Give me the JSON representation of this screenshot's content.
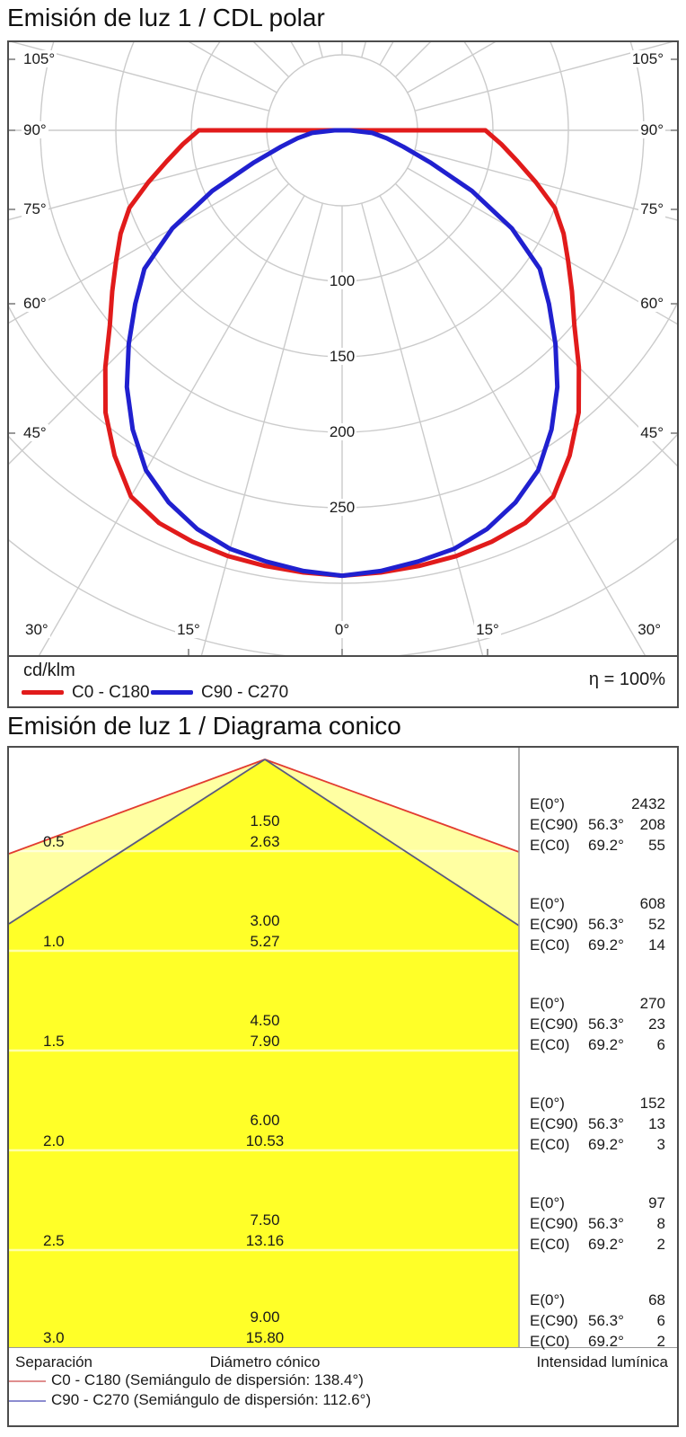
{
  "chart_data": [
    {
      "type": "polar",
      "title": "Emisión de luz 1 / CDL polar",
      "unit": "cd/klm",
      "efficiency": "η = 100%",
      "angle_step_deg": 5,
      "radial_ticks": [
        100,
        150,
        200,
        250
      ],
      "radial_grid": [
        50,
        100,
        150,
        200,
        250,
        300,
        350
      ],
      "angle_labels": {
        "left": [
          "105°",
          "90°",
          "75°",
          "60°",
          "45°",
          "30°"
        ],
        "bottom": [
          "15°",
          "0°",
          "15°"
        ],
        "right": [
          "105°",
          "90°",
          "75°",
          "60°",
          "45°",
          "30°"
        ]
      },
      "series": [
        {
          "name": "C0 - C180",
          "color": "#e11b1b",
          "angles_deg_0_to_90": [
            0,
            5,
            10,
            15,
            20,
            25,
            30,
            35,
            40,
            45,
            50,
            55,
            60,
            65,
            70,
            75,
            80,
            85,
            90
          ],
          "values_cd_per_klm": [
            295,
            294,
            293,
            292,
            290,
            287,
            280,
            263,
            244,
            222,
            201,
            186,
            173,
            162,
            150,
            133,
            118,
            106,
            95
          ]
        },
        {
          "name": "C90 - C270",
          "color": "#2020cf",
          "angles_deg_0_to_90": [
            0,
            5,
            10,
            15,
            20,
            25,
            30,
            35,
            40,
            45,
            50,
            55,
            60,
            65,
            70,
            75,
            80,
            85,
            90
          ],
          "values_cd_per_klm": [
            295,
            293,
            290,
            287,
            281,
            272,
            260,
            242,
            222,
            200,
            179,
            160,
            130,
            95,
            62,
            42,
            30,
            20,
            5
          ]
        }
      ]
    },
    {
      "type": "cone",
      "title": "Emisión de luz 1 / Diagrama conico",
      "columns": {
        "separation": "Separación",
        "diameter": "Diámetro cónico",
        "intensity": "Intensidad lumínica"
      },
      "e_row_labels": [
        "E(0°)",
        "E(C90)",
        "E(C0)"
      ],
      "c90_half_angle": "56.3°",
      "c0_half_angle": "69.2°",
      "rows": [
        {
          "separation": "0.5",
          "diameter_c90": "1.50",
          "diameter_c0": "2.63",
          "E0": "2432",
          "EC90": "208",
          "EC0": "55"
        },
        {
          "separation": "1.0",
          "diameter_c90": "3.00",
          "diameter_c0": "5.27",
          "E0": "608",
          "EC90": "52",
          "EC0": "14"
        },
        {
          "separation": "1.5",
          "diameter_c90": "4.50",
          "diameter_c0": "7.90",
          "E0": "270",
          "EC90": "23",
          "EC0": "6"
        },
        {
          "separation": "2.0",
          "diameter_c90": "6.00",
          "diameter_c0": "10.53",
          "E0": "152",
          "EC90": "13",
          "EC0": "3"
        },
        {
          "separation": "2.5",
          "diameter_c90": "7.50",
          "diameter_c0": "13.16",
          "E0": "97",
          "EC90": "8",
          "EC0": "2"
        },
        {
          "separation": "3.0",
          "diameter_c90": "9.00",
          "diameter_c0": "15.80",
          "E0": "68",
          "EC90": "6",
          "EC0": "2"
        }
      ],
      "legend": [
        {
          "name": "C0 - C180 (Semiángulo de dispersión: 138.4°)",
          "color": "#e08e8e"
        },
        {
          "name": "C90 - C270 (Semiángulo de dispersión: 112.6°)",
          "color": "#8c8cd0"
        }
      ],
      "cone_colors": {
        "inner_fill": "#ffff28",
        "outer_fill": "#ffffa2",
        "c0_line": "#e23c31",
        "c90_line": "#5a5a80"
      }
    }
  ]
}
